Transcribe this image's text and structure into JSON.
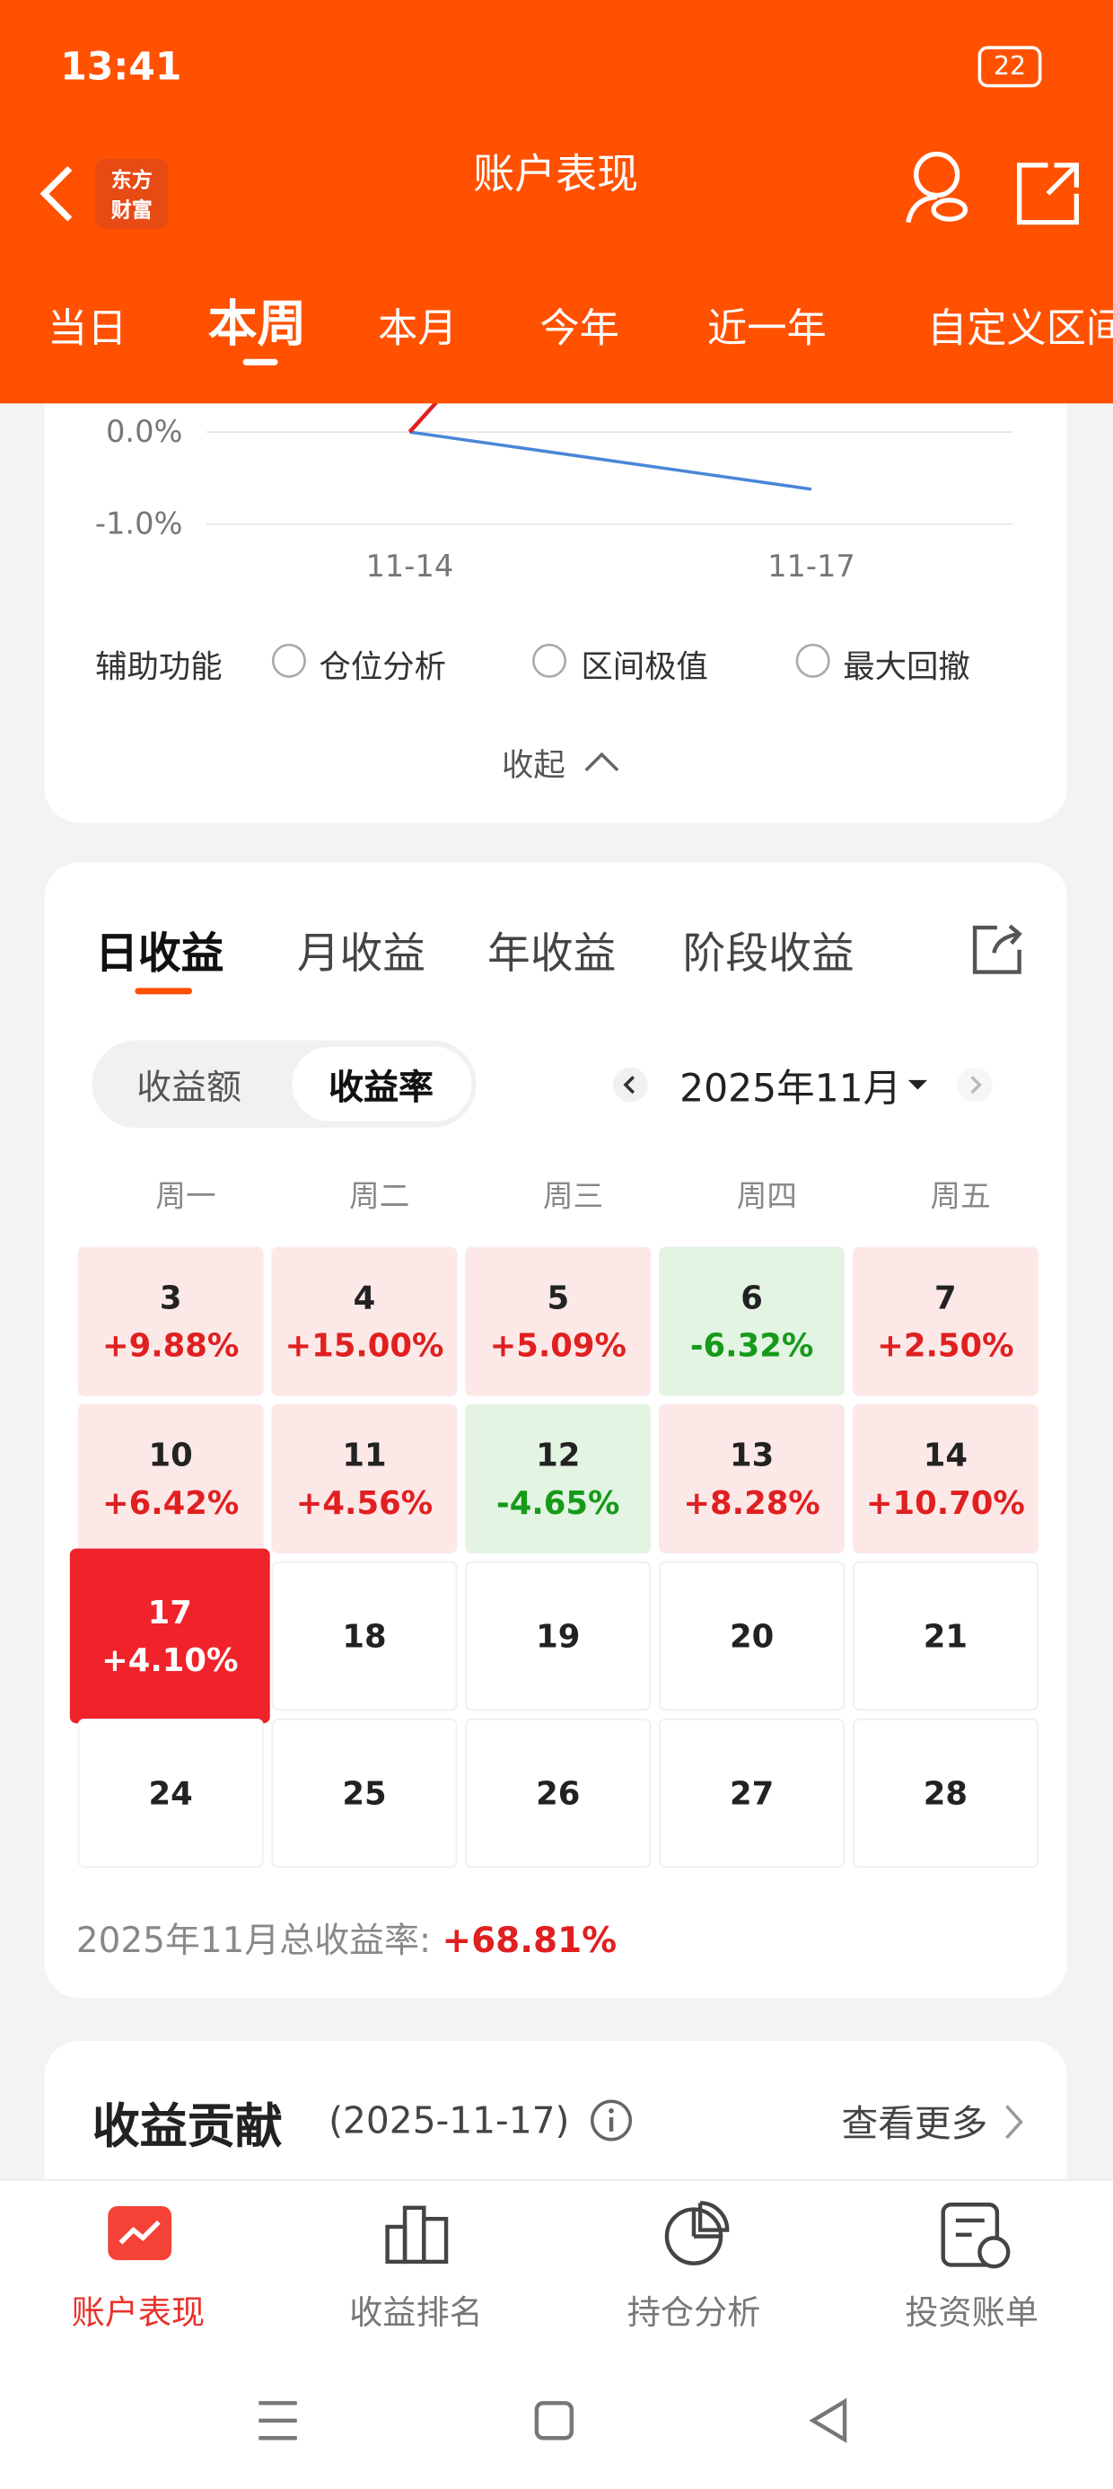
{
  "status": {
    "time": "13:41",
    "battery": "22"
  },
  "header": {
    "title": "账户表现",
    "logo": [
      "东方",
      "财富"
    ],
    "tabs": [
      "当日",
      "本周",
      "本月",
      "今年",
      "近一年",
      "自定义区间"
    ],
    "active_tab": 1
  },
  "chart": {
    "yticks": [
      "0.0%",
      "-1.0%"
    ],
    "xlabels": [
      "11-14",
      "11-17"
    ]
  },
  "aux": {
    "label": "辅助功能",
    "options": [
      "仓位分析",
      "区间极值",
      "最大回撤"
    ],
    "collapse": "收起"
  },
  "returns": {
    "tabs": [
      "日收益",
      "月收益",
      "年收益",
      "阶段收益"
    ],
    "active_tab": 0,
    "toggle": [
      "收益额",
      "收益率"
    ],
    "active_toggle": 1,
    "month": "2025年11月",
    "weekdays": [
      "周一",
      "周二",
      "周三",
      "周四",
      "周五"
    ],
    "weeks": [
      [
        {
          "day": 3,
          "change": "+9.88%"
        },
        {
          "day": 4,
          "change": "+15.00%"
        },
        {
          "day": 5,
          "change": "+5.09%"
        },
        {
          "day": 6,
          "change": "-6.32%"
        },
        {
          "day": 7,
          "change": "+2.50%"
        }
      ],
      [
        {
          "day": 10,
          "change": "+6.42%"
        },
        {
          "day": 11,
          "change": "+4.56%"
        },
        {
          "day": 12,
          "change": "-4.65%"
        },
        {
          "day": 13,
          "change": "+8.28%"
        },
        {
          "day": 14,
          "change": "+10.70%"
        }
      ],
      [
        {
          "day": 17,
          "change": "+4.10%",
          "selected": true
        },
        {
          "day": 18
        },
        {
          "day": 19
        },
        {
          "day": 20
        },
        {
          "day": 21
        }
      ],
      [
        {
          "day": 24
        },
        {
          "day": 25
        },
        {
          "day": 26
        },
        {
          "day": 27
        },
        {
          "day": 28
        }
      ]
    ],
    "total_label": "2025年11月总收益率:",
    "total_value": "+68.81%"
  },
  "contribution": {
    "title": "收益贡献",
    "date": "(2025-11-17)",
    "more": "查看更多"
  },
  "nav": {
    "items": [
      "账户表现",
      "收益排名",
      "持仓分析",
      "投资账单"
    ],
    "active": 0
  }
}
